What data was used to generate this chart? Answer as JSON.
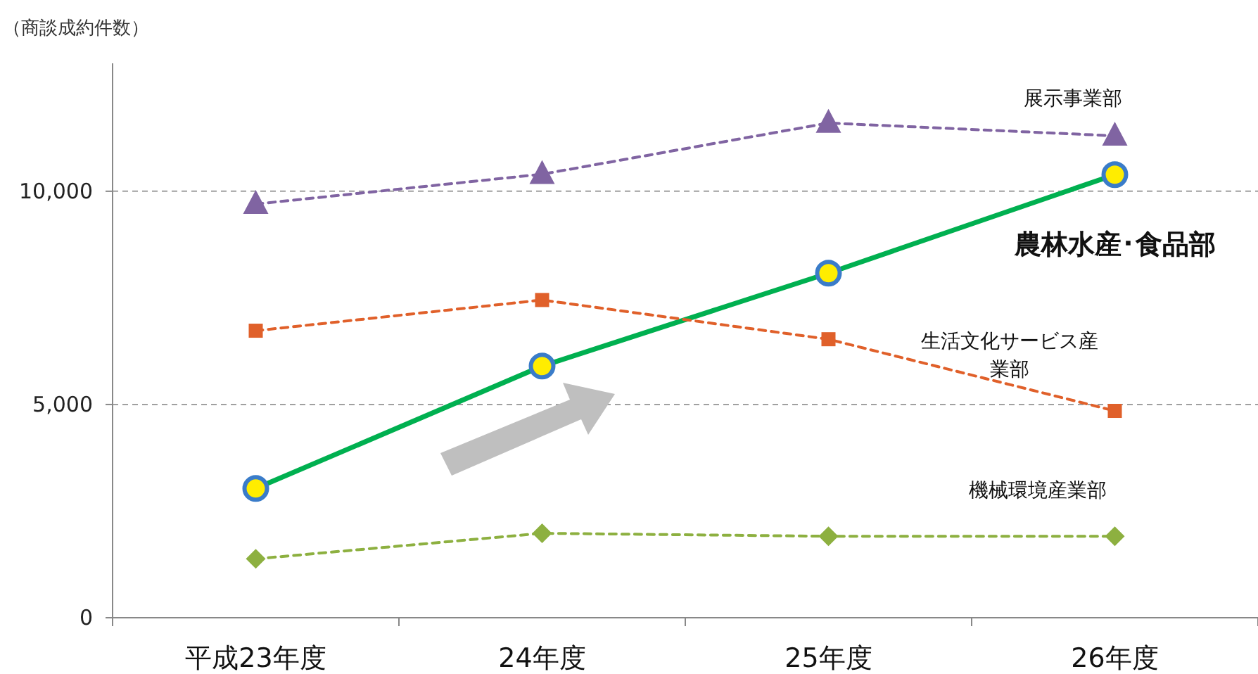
{
  "chart_data": {
    "type": "line",
    "ylabel": "（商談成約件数）",
    "categories": [
      "平成23年度",
      "24年度",
      "25年度",
      "26年度"
    ],
    "ylim": [
      0,
      13000
    ],
    "yticks": [
      0,
      {
        "value": 5000,
        "label": "5,000"
      },
      {
        "value": 10000,
        "label": "10,000"
      }
    ],
    "grid": "y",
    "legend": false,
    "series": [
      {
        "name": "展示事業部",
        "color": "#8064a2",
        "marker": "triangle",
        "line_style": "dashed",
        "values": [
          9700,
          10400,
          11600,
          11300
        ]
      },
      {
        "name": "農林水産･食品部",
        "color": "#00b050",
        "marker": "circle",
        "line_style": "solid",
        "values": [
          3030,
          5900,
          8080,
          10390
        ]
      },
      {
        "name": "生活文化サービス産業部",
        "color": "#e0602a",
        "marker": "square",
        "line_style": "dashed",
        "values": [
          6730,
          7450,
          6530,
          4850
        ]
      },
      {
        "name": "機械環境産業部",
        "color": "#8db040",
        "marker": "diamond",
        "line_style": "dashed",
        "values": [
          1380,
          1980,
          1910,
          1910
        ]
      }
    ]
  }
}
